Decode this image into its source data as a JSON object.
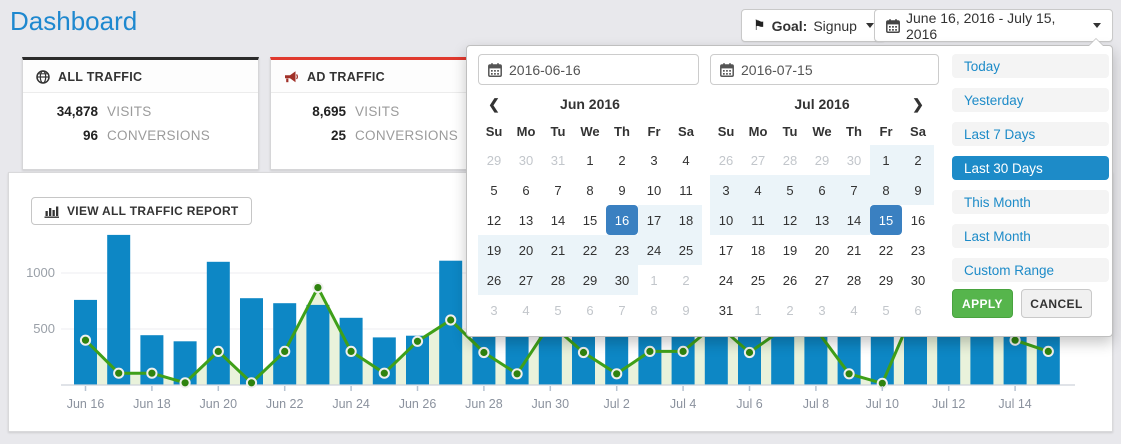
{
  "page": {
    "title": "Dashboard"
  },
  "header": {
    "goal_button": {
      "icon": "flag-icon",
      "flag_glyph": "⚑",
      "prefix": "Goal:",
      "value": "Signup"
    },
    "daterange_button": {
      "icon": "calendar-icon",
      "label": "June 16, 2016 - July 15, 2016"
    }
  },
  "cards": [
    {
      "title": "ALL TRAFFIC",
      "icon": "globe-icon",
      "accent": "#2b2b2b",
      "stats": [
        {
          "value": "34,878",
          "label": "VISITS"
        },
        {
          "value": "96",
          "label": "CONVERSIONS"
        }
      ]
    },
    {
      "title": "AD TRAFFIC",
      "icon": "megaphone-icon",
      "accent": "#e0392e",
      "stats": [
        {
          "value": "8,695",
          "label": "VISITS"
        },
        {
          "value": "25",
          "label": "CONVERSIONS"
        }
      ]
    }
  ],
  "chart_section": {
    "report_button": "VIEW ALL TRAFFIC REPORT"
  },
  "chart_data": {
    "type": "bar",
    "categories": [
      "Jun 16",
      "Jun 17",
      "Jun 18",
      "Jun 19",
      "Jun 20",
      "Jun 21",
      "Jun 22",
      "Jun 23",
      "Jun 24",
      "Jun 25",
      "Jun 26",
      "Jun 27",
      "Jun 28",
      "Jun 29",
      "Jun 30",
      "Jul 1",
      "Jul 2",
      "Jul 3",
      "Jul 4",
      "Jul 5",
      "Jul 6",
      "Jul 7",
      "Jul 8",
      "Jul 9",
      "Jul 10",
      "Jul 11",
      "Jul 12",
      "Jul 13",
      "Jul 14",
      "Jul 15"
    ],
    "series": [
      {
        "name": "visits",
        "type": "bar",
        "color": "#0d87c5",
        "values": [
          760,
          1340,
          445,
          390,
          1100,
          775,
          730,
          715,
          600,
          425,
          440,
          1110,
          820,
          640,
          920,
          700,
          560,
          810,
          750,
          960,
          690,
          630,
          880,
          540,
          860,
          1040,
          970,
          760,
          700,
          730
        ]
      },
      {
        "name": "conversions",
        "type": "line",
        "color": "#3fa019",
        "area_color": "#e9f2db",
        "marker_color": "#2f830f",
        "values": [
          400,
          105,
          105,
          20,
          300,
          20,
          300,
          870,
          300,
          105,
          390,
          580,
          290,
          100,
          550,
          290,
          100,
          300,
          300,
          550,
          290,
          500,
          500,
          100,
          15,
          700,
          800,
          700,
          400,
          300
        ]
      }
    ],
    "x_tick_labels": [
      "Jun 16",
      "Jun 18",
      "Jun 20",
      "Jun 22",
      "Jun 24",
      "Jun 26",
      "Jun 28",
      "Jun 30",
      "Jul 2",
      "Jul 4",
      "Jul 6",
      "Jul 8",
      "Jul 10",
      "Jul 12",
      "Jul 14"
    ],
    "y_ticks": [
      500,
      1000
    ],
    "ylim": [
      0,
      1450
    ],
    "grid": true,
    "legend": "none"
  },
  "datepicker": {
    "start_input": "2016-06-16",
    "end_input": "2016-07-15",
    "weekdays": [
      "Su",
      "Mo",
      "Tu",
      "We",
      "Th",
      "Fr",
      "Sa"
    ],
    "prev_icon": "❮",
    "next_icon": "❯",
    "calendars": [
      {
        "title": "Jun 2016",
        "has_prev": true,
        "has_next": false,
        "weeks": [
          [
            {
              "d": "29",
              "s": "off"
            },
            {
              "d": "30",
              "s": "off"
            },
            {
              "d": "31",
              "s": "off"
            },
            {
              "d": "1",
              "s": ""
            },
            {
              "d": "2",
              "s": ""
            },
            {
              "d": "3",
              "s": ""
            },
            {
              "d": "4",
              "s": ""
            }
          ],
          [
            {
              "d": "5",
              "s": ""
            },
            {
              "d": "6",
              "s": ""
            },
            {
              "d": "7",
              "s": ""
            },
            {
              "d": "8",
              "s": ""
            },
            {
              "d": "9",
              "s": ""
            },
            {
              "d": "10",
              "s": ""
            },
            {
              "d": "11",
              "s": ""
            }
          ],
          [
            {
              "d": "12",
              "s": ""
            },
            {
              "d": "13",
              "s": ""
            },
            {
              "d": "14",
              "s": ""
            },
            {
              "d": "15",
              "s": ""
            },
            {
              "d": "16",
              "s": "active"
            },
            {
              "d": "17",
              "s": "range"
            },
            {
              "d": "18",
              "s": "range"
            }
          ],
          [
            {
              "d": "19",
              "s": "range"
            },
            {
              "d": "20",
              "s": "range"
            },
            {
              "d": "21",
              "s": "range"
            },
            {
              "d": "22",
              "s": "range"
            },
            {
              "d": "23",
              "s": "range"
            },
            {
              "d": "24",
              "s": "range"
            },
            {
              "d": "25",
              "s": "range"
            }
          ],
          [
            {
              "d": "26",
              "s": "range"
            },
            {
              "d": "27",
              "s": "range"
            },
            {
              "d": "28",
              "s": "range"
            },
            {
              "d": "29",
              "s": "range"
            },
            {
              "d": "30",
              "s": "range"
            },
            {
              "d": "1",
              "s": "off"
            },
            {
              "d": "2",
              "s": "off"
            }
          ],
          [
            {
              "d": "3",
              "s": "off"
            },
            {
              "d": "4",
              "s": "off"
            },
            {
              "d": "5",
              "s": "off"
            },
            {
              "d": "6",
              "s": "off"
            },
            {
              "d": "7",
              "s": "off"
            },
            {
              "d": "8",
              "s": "off"
            },
            {
              "d": "9",
              "s": "off"
            }
          ]
        ]
      },
      {
        "title": "Jul 2016",
        "has_prev": false,
        "has_next": true,
        "weeks": [
          [
            {
              "d": "26",
              "s": "off"
            },
            {
              "d": "27",
              "s": "off"
            },
            {
              "d": "28",
              "s": "off"
            },
            {
              "d": "29",
              "s": "off"
            },
            {
              "d": "30",
              "s": "off"
            },
            {
              "d": "1",
              "s": "range"
            },
            {
              "d": "2",
              "s": "range"
            }
          ],
          [
            {
              "d": "3",
              "s": "range"
            },
            {
              "d": "4",
              "s": "range"
            },
            {
              "d": "5",
              "s": "range"
            },
            {
              "d": "6",
              "s": "range"
            },
            {
              "d": "7",
              "s": "range"
            },
            {
              "d": "8",
              "s": "range"
            },
            {
              "d": "9",
              "s": "range"
            }
          ],
          [
            {
              "d": "10",
              "s": "range"
            },
            {
              "d": "11",
              "s": "range"
            },
            {
              "d": "12",
              "s": "range"
            },
            {
              "d": "13",
              "s": "range"
            },
            {
              "d": "14",
              "s": "range"
            },
            {
              "d": "15",
              "s": "active"
            },
            {
              "d": "16",
              "s": ""
            }
          ],
          [
            {
              "d": "17",
              "s": ""
            },
            {
              "d": "18",
              "s": ""
            },
            {
              "d": "19",
              "s": ""
            },
            {
              "d": "20",
              "s": ""
            },
            {
              "d": "21",
              "s": ""
            },
            {
              "d": "22",
              "s": ""
            },
            {
              "d": "23",
              "s": ""
            }
          ],
          [
            {
              "d": "24",
              "s": ""
            },
            {
              "d": "25",
              "s": ""
            },
            {
              "d": "26",
              "s": ""
            },
            {
              "d": "27",
              "s": ""
            },
            {
              "d": "28",
              "s": ""
            },
            {
              "d": "29",
              "s": ""
            },
            {
              "d": "30",
              "s": ""
            }
          ],
          [
            {
              "d": "31",
              "s": ""
            },
            {
              "d": "1",
              "s": "off"
            },
            {
              "d": "2",
              "s": "off"
            },
            {
              "d": "3",
              "s": "off"
            },
            {
              "d": "4",
              "s": "off"
            },
            {
              "d": "5",
              "s": "off"
            },
            {
              "d": "6",
              "s": "off"
            }
          ]
        ]
      }
    ],
    "presets": [
      {
        "label": "Today",
        "active": false
      },
      {
        "label": "Yesterday",
        "active": false
      },
      {
        "label": "Last 7 Days",
        "active": false
      },
      {
        "label": "Last 30 Days",
        "active": true
      },
      {
        "label": "This Month",
        "active": false
      },
      {
        "label": "Last Month",
        "active": false
      },
      {
        "label": "Custom Range",
        "active": false
      }
    ],
    "apply_label": "APPLY",
    "cancel_label": "CANCEL"
  },
  "colors": {
    "accent_blue": "#1d8bc8",
    "selected_day_blue": "#3a80c1",
    "in_range_blue": "#ebf4f9",
    "bar_blue": "#0d87c5",
    "line_green": "#3fa019",
    "area_green": "#e9f2db",
    "apply_green": "#56b54c",
    "title_blue": "#1e88cf",
    "page_bg": "#e8e8ec"
  }
}
